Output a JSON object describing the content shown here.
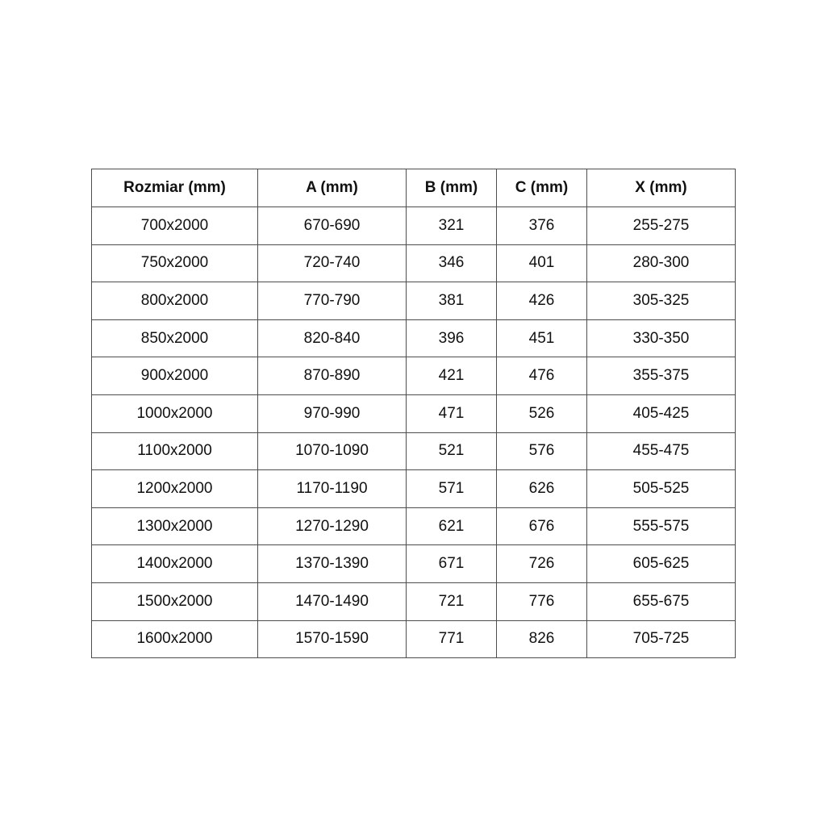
{
  "chart_data": {
    "type": "table",
    "columns": [
      "Rozmiar (mm)",
      "A (mm)",
      "B (mm)",
      "C (mm)",
      "X (mm)"
    ],
    "rows": [
      [
        "700x2000",
        "670-690",
        "321",
        "376",
        "255-275"
      ],
      [
        "750x2000",
        "720-740",
        "346",
        "401",
        "280-300"
      ],
      [
        "800x2000",
        "770-790",
        "381",
        "426",
        "305-325"
      ],
      [
        "850x2000",
        "820-840",
        "396",
        "451",
        "330-350"
      ],
      [
        "900x2000",
        "870-890",
        "421",
        "476",
        "355-375"
      ],
      [
        "1000x2000",
        "970-990",
        "471",
        "526",
        "405-425"
      ],
      [
        "1100x2000",
        "1070-1090",
        "521",
        "576",
        "455-475"
      ],
      [
        "1200x2000",
        "1170-1190",
        "571",
        "626",
        "505-525"
      ],
      [
        "1300x2000",
        "1270-1290",
        "621",
        "676",
        "555-575"
      ],
      [
        "1400x2000",
        "1370-1390",
        "671",
        "726",
        "605-625"
      ],
      [
        "1500x2000",
        "1470-1490",
        "721",
        "776",
        "655-675"
      ],
      [
        "1600x2000",
        "1570-1590",
        "771",
        "826",
        "705-725"
      ]
    ],
    "title": "",
    "legend": null,
    "grid": true
  },
  "colors": {
    "border": "#4d4d4d",
    "text": "#111111",
    "background": "#ffffff"
  }
}
